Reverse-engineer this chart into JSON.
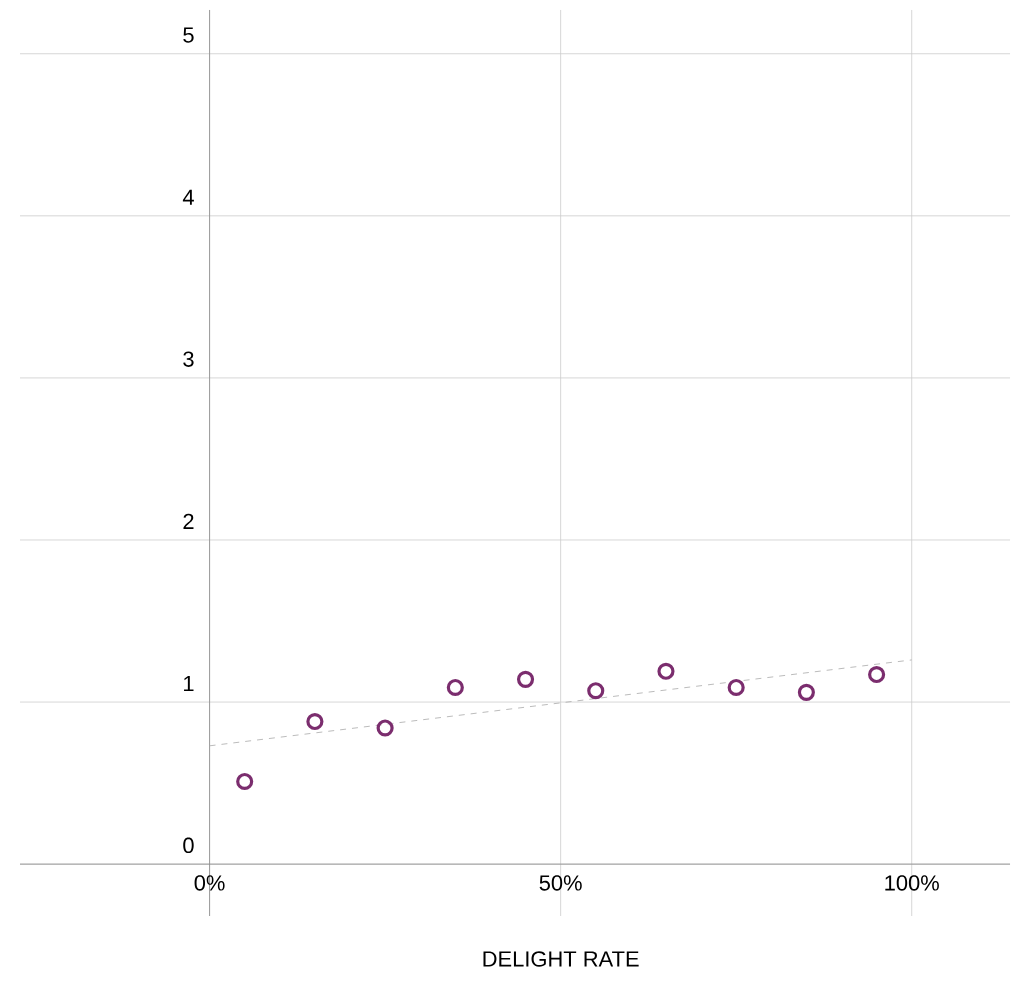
{
  "chart_data": {
    "type": "scatter",
    "xlabel": "DELIGHT RATE",
    "x": [
      5,
      15,
      25,
      35,
      45,
      55,
      65,
      75,
      85,
      95
    ],
    "xlim": [
      -27,
      114
    ],
    "ylim": [
      -0.32,
      5.27
    ],
    "xticks": [
      {
        "value": 0,
        "label": "0%"
      },
      {
        "value": 50,
        "label": "50%"
      },
      {
        "value": 100,
        "label": "100%"
      }
    ],
    "yticks": [
      0,
      1,
      2,
      3,
      4,
      5
    ],
    "grid": true,
    "marker": "circle",
    "series": [
      {
        "type": "scatter",
        "color": "#7b2d6e",
        "values": [
          0.51,
          0.88,
          0.84,
          1.09,
          1.14,
          1.07,
          1.19,
          1.09,
          1.06,
          1.17
        ]
      },
      {
        "type": "line",
        "color": "#aaaaaa",
        "line_style": "dashed",
        "marker": "none",
        "x": [
          0,
          100
        ],
        "values": [
          0.73,
          1.26
        ]
      }
    ]
  }
}
